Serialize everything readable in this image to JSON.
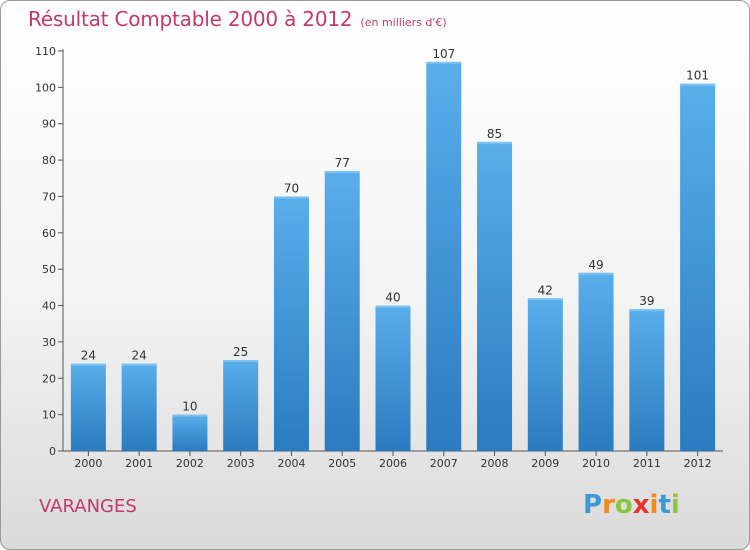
{
  "title": "Résultat Comptable 2000 à 2012",
  "subtitle": "(en milliers d'€)",
  "town": "VARANGES",
  "logo": {
    "text": "Proxiti",
    "letters": [
      {
        "ch": "P",
        "color": "#3a9ad9"
      },
      {
        "ch": "r",
        "color": "#f08a1c"
      },
      {
        "ch": "o",
        "color": "#8cc63f"
      },
      {
        "ch": "x",
        "color": "#e5352b"
      },
      {
        "ch": "i",
        "color": "#f08a1c"
      },
      {
        "ch": "t",
        "color": "#3a9ad9"
      },
      {
        "ch": "i",
        "color": "#8cc63f"
      }
    ]
  },
  "colors": {
    "title": "#c23a6e",
    "bar_top": "#5aaeea",
    "bar_bottom": "#2a7bbf",
    "axis": "#555555",
    "text": "#333333"
  },
  "chart_data": {
    "type": "bar",
    "categories": [
      "2000",
      "2001",
      "2002",
      "2003",
      "2004",
      "2005",
      "2006",
      "2007",
      "2008",
      "2009",
      "2010",
      "2011",
      "2012"
    ],
    "values": [
      24,
      24,
      10,
      25,
      70,
      77,
      40,
      107,
      85,
      42,
      49,
      39,
      101
    ],
    "ylim": [
      0,
      110
    ],
    "yticks": [
      0,
      10,
      20,
      30,
      40,
      50,
      60,
      70,
      80,
      90,
      100,
      110
    ],
    "grid": false,
    "legend": "none"
  }
}
